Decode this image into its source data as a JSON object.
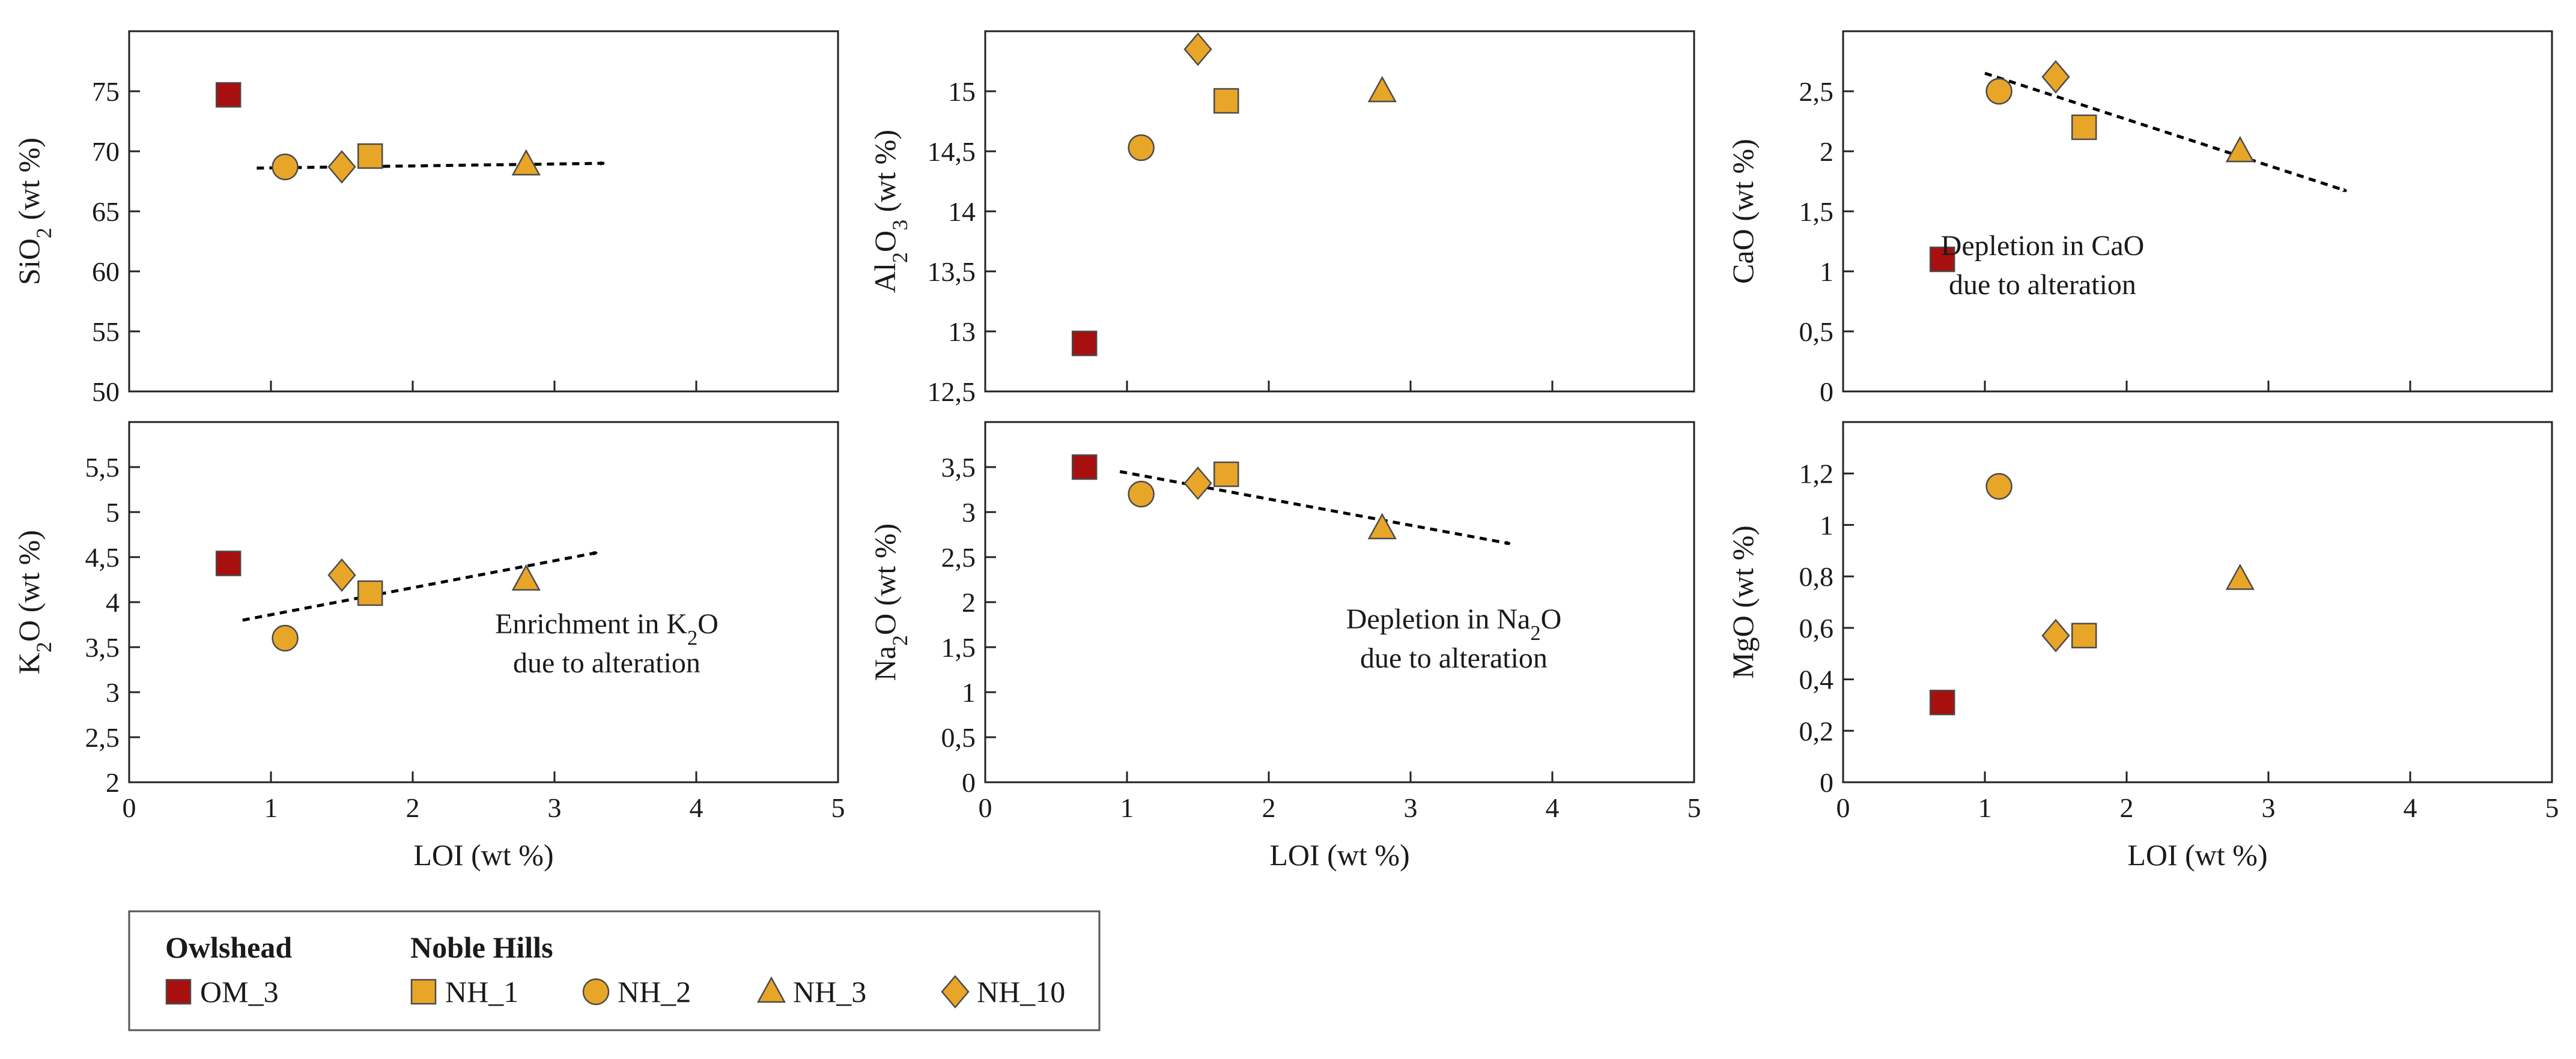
{
  "colors": {
    "owlshead": "#a80f0f",
    "noble_hills": "#e8a629",
    "marker_stroke": "#4a4a4a",
    "axis": "#222222"
  },
  "legend": {
    "groups": [
      {
        "heading": "Owlshead",
        "items": [
          {
            "label": "OM_3",
            "marker": "square",
            "color": "#a80f0f"
          }
        ]
      },
      {
        "heading": "Noble Hills",
        "items": [
          {
            "label": "NH_1",
            "marker": "square",
            "color": "#e8a629"
          },
          {
            "label": "NH_2",
            "marker": "circle",
            "color": "#e8a629"
          },
          {
            "label": "NH_3",
            "marker": "triangle",
            "color": "#e8a629"
          },
          {
            "label": "NH_10",
            "marker": "diamond",
            "color": "#e8a629"
          }
        ]
      }
    ]
  },
  "chart_data": [
    {
      "type": "scatter",
      "id": "sio2",
      "ylabel": {
        "main": "SiO",
        "sub": "2",
        "rest": " (wt %)"
      },
      "xlabel": "",
      "xlim": [
        0,
        5
      ],
      "ylim": [
        50,
        80
      ],
      "xticks": [
        0,
        1,
        2,
        3,
        4,
        5
      ],
      "xtick_labels": [],
      "yticks": [
        50,
        55,
        60,
        65,
        70,
        75
      ],
      "ytick_labels": [
        "50",
        "55",
        "60",
        "65",
        "70",
        "75"
      ],
      "points": [
        {
          "sample": "OM_3",
          "x": 0.7,
          "y": 74.7
        },
        {
          "sample": "NH_1",
          "x": 1.7,
          "y": 69.6
        },
        {
          "sample": "NH_2",
          "x": 1.1,
          "y": 68.7
        },
        {
          "sample": "NH_3",
          "x": 2.8,
          "y": 68.9
        },
        {
          "sample": "NH_10",
          "x": 1.5,
          "y": 68.7
        }
      ],
      "arrow": {
        "from": [
          0.9,
          68.6
        ],
        "to": [
          3.35,
          69.0
        ]
      },
      "annotation": []
    },
    {
      "type": "scatter",
      "id": "al2o3",
      "ylabel": {
        "main": "Al",
        "sub": "2",
        "mid": "O",
        "sub2": "3",
        "rest": " (wt %)"
      },
      "xlabel": "",
      "xlim": [
        0,
        5
      ],
      "ylim": [
        12.5,
        15.5
      ],
      "xticks": [
        0,
        1,
        2,
        3,
        4,
        5
      ],
      "xtick_labels": [],
      "yticks": [
        12.5,
        13,
        13.5,
        14,
        14.5,
        15
      ],
      "ytick_labels": [
        "12,5",
        "13",
        "13,5",
        "14",
        "14,5",
        "15"
      ],
      "points": [
        {
          "sample": "OM_3",
          "x": 0.7,
          "y": 12.9
        },
        {
          "sample": "NH_1",
          "x": 1.7,
          "y": 14.92
        },
        {
          "sample": "NH_2",
          "x": 1.1,
          "y": 14.53
        },
        {
          "sample": "NH_3",
          "x": 2.8,
          "y": 15.0
        },
        {
          "sample": "NH_10",
          "x": 1.5,
          "y": 15.35
        }
      ],
      "annotation": []
    },
    {
      "type": "scatter",
      "id": "cao",
      "ylabel": {
        "main": "CaO (wt %)"
      },
      "xlabel": "",
      "xlim": [
        0,
        5
      ],
      "ylim": [
        0,
        3.0
      ],
      "xticks": [
        0,
        1,
        2,
        3,
        4,
        5
      ],
      "xtick_labels": [],
      "yticks": [
        0,
        0.5,
        1,
        1.5,
        2,
        2.5
      ],
      "ytick_labels": [
        "0",
        "0,5",
        "1",
        "1,5",
        "2",
        "2,5"
      ],
      "points": [
        {
          "sample": "OM_3",
          "x": 0.7,
          "y": 1.1
        },
        {
          "sample": "NH_1",
          "x": 1.7,
          "y": 2.2
        },
        {
          "sample": "NH_2",
          "x": 1.1,
          "y": 2.5
        },
        {
          "sample": "NH_3",
          "x": 2.8,
          "y": 2.0
        },
        {
          "sample": "NH_10",
          "x": 1.5,
          "y": 2.62
        }
      ],
      "arrow": {
        "from": [
          1.0,
          2.65
        ],
        "to": [
          3.55,
          1.67
        ]
      },
      "annotation": [
        "Depletion in CaO",
        "due to alteration"
      ]
    },
    {
      "type": "scatter",
      "id": "k2o",
      "ylabel": {
        "main": "K",
        "sub": "2",
        "rest": "O (wt %)"
      },
      "xlabel": "LOI (wt %)",
      "xlim": [
        0,
        5
      ],
      "ylim": [
        2,
        6
      ],
      "xticks": [
        0,
        1,
        2,
        3,
        4,
        5
      ],
      "xtick_labels": [
        "0",
        "1",
        "2",
        "3",
        "4",
        "5"
      ],
      "yticks": [
        2,
        2.5,
        3,
        3.5,
        4,
        4.5,
        5,
        5.5
      ],
      "ytick_labels": [
        "2",
        "2,5",
        "3",
        "3,5",
        "4",
        "4,5",
        "5",
        "5,5"
      ],
      "points": [
        {
          "sample": "OM_3",
          "x": 0.7,
          "y": 4.43
        },
        {
          "sample": "NH_1",
          "x": 1.7,
          "y": 4.1
        },
        {
          "sample": "NH_2",
          "x": 1.1,
          "y": 3.6
        },
        {
          "sample": "NH_3",
          "x": 2.8,
          "y": 4.25
        },
        {
          "sample": "NH_10",
          "x": 1.5,
          "y": 4.3
        }
      ],
      "arrow": {
        "from": [
          0.8,
          3.8
        ],
        "to": [
          3.3,
          4.55
        ]
      },
      "annotation": [
        {
          "main": "Enrichment in K",
          "sub": "2",
          "rest": "O"
        },
        "due to alteration"
      ]
    },
    {
      "type": "scatter",
      "id": "na2o",
      "ylabel": {
        "main": "Na",
        "sub": "2",
        "rest": "O (wt %)"
      },
      "xlabel": "LOI (wt %)",
      "xlim": [
        0,
        5
      ],
      "ylim": [
        0,
        4.0
      ],
      "xticks": [
        0,
        1,
        2,
        3,
        4,
        5
      ],
      "xtick_labels": [
        "0",
        "1",
        "2",
        "3",
        "4",
        "5"
      ],
      "yticks": [
        0,
        0.5,
        1,
        1.5,
        2,
        2.5,
        3,
        3.5
      ],
      "ytick_labels": [
        "0",
        "0,5",
        "1",
        "1,5",
        "2",
        "2,5",
        "3",
        "3,5"
      ],
      "points": [
        {
          "sample": "OM_3",
          "x": 0.7,
          "y": 3.5
        },
        {
          "sample": "NH_1",
          "x": 1.7,
          "y": 3.42
        },
        {
          "sample": "NH_2",
          "x": 1.1,
          "y": 3.2
        },
        {
          "sample": "NH_3",
          "x": 2.8,
          "y": 2.82
        },
        {
          "sample": "NH_10",
          "x": 1.5,
          "y": 3.32
        }
      ],
      "arrow": {
        "from": [
          0.95,
          3.45
        ],
        "to": [
          3.7,
          2.65
        ]
      },
      "annotation": [
        {
          "main": "Depletion in Na",
          "sub": "2",
          "rest": "O"
        },
        "due to alteration"
      ]
    },
    {
      "type": "scatter",
      "id": "mgo",
      "ylabel": {
        "main": "MgO (wt %)"
      },
      "xlabel": "LOI (wt %)",
      "xlim": [
        0,
        5
      ],
      "ylim": [
        0,
        1.4
      ],
      "xticks": [
        0,
        1,
        2,
        3,
        4,
        5
      ],
      "xtick_labels": [
        "0",
        "1",
        "2",
        "3",
        "4",
        "5"
      ],
      "yticks": [
        0,
        0.2,
        0.4,
        0.6,
        0.8,
        1,
        1.2
      ],
      "ytick_labels": [
        "0",
        "0,2",
        "0,4",
        "0,6",
        "0,8",
        "1",
        "1,2"
      ],
      "points": [
        {
          "sample": "OM_3",
          "x": 0.7,
          "y": 0.31
        },
        {
          "sample": "NH_1",
          "x": 1.7,
          "y": 0.57
        },
        {
          "sample": "NH_2",
          "x": 1.1,
          "y": 1.15
        },
        {
          "sample": "NH_3",
          "x": 2.8,
          "y": 0.79
        },
        {
          "sample": "NH_10",
          "x": 1.5,
          "y": 0.57
        }
      ],
      "annotation": []
    }
  ]
}
